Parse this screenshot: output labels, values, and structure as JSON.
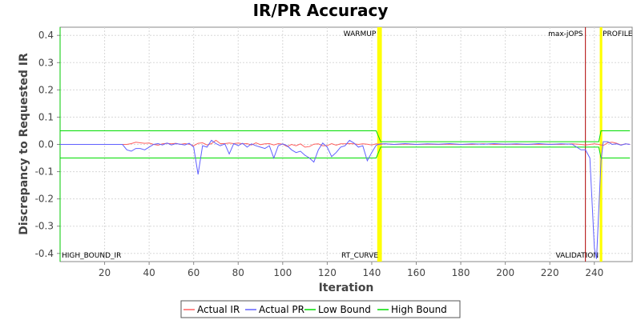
{
  "chart_data": {
    "type": "line",
    "title": "IR/PR Accuracy",
    "xlabel": "Iteration",
    "ylabel": "Discrepancy to Requested IR",
    "xlim": [
      0,
      257
    ],
    "ylim": [
      -0.43,
      0.43
    ],
    "xticks": [
      20,
      40,
      60,
      80,
      100,
      120,
      140,
      160,
      180,
      200,
      220,
      240
    ],
    "yticks": [
      0.4,
      0.3,
      0.2,
      0.1,
      0.0,
      -0.1,
      -0.2,
      -0.3,
      -0.4
    ],
    "ytick_labels": [
      "0.4",
      "0.3",
      "0.2",
      "0.1",
      "0.0",
      "-0.1",
      "-0.2",
      "-0.3",
      "-0.4"
    ],
    "grid": true,
    "legend_position": "bottom",
    "markers": [
      {
        "label": "HIGH_BOUND_IR",
        "x": 0,
        "color": "#00c800",
        "label_pos": "bottom-right"
      },
      {
        "label": "WARMUP",
        "x": 143,
        "color": "#ffff00",
        "label_pos": "top-left"
      },
      {
        "label": "RT_CURVE",
        "x": 144,
        "color": "#ffff00",
        "label_pos": "bottom-left"
      },
      {
        "label": "max-jOPS",
        "x": 236,
        "color": "#b00000",
        "label_pos": "top-left"
      },
      {
        "label": "VALIDATION",
        "x": 243,
        "color": "#ffff00",
        "label_pos": "bottom-left"
      },
      {
        "label": "PROFILE",
        "x": 243,
        "color": "#ffff00",
        "label_pos": "top-right"
      }
    ],
    "series": [
      {
        "name": "Actual IR",
        "color": "#ff6060",
        "x": [
          0,
          28,
          30,
          32,
          34,
          36,
          38,
          40,
          42,
          44,
          46,
          48,
          50,
          52,
          54,
          56,
          58,
          60,
          62,
          64,
          66,
          68,
          70,
          72,
          74,
          76,
          78,
          80,
          82,
          84,
          86,
          88,
          90,
          92,
          94,
          96,
          98,
          100,
          102,
          104,
          106,
          108,
          110,
          112,
          114,
          116,
          118,
          120,
          122,
          124,
          126,
          128,
          130,
          132,
          134,
          136,
          138,
          140,
          142,
          144,
          146,
          150,
          155,
          160,
          165,
          170,
          175,
          180,
          185,
          190,
          195,
          200,
          205,
          210,
          215,
          220,
          225,
          230,
          234,
          236,
          238,
          240,
          242,
          244,
          246,
          248,
          250,
          252,
          254,
          256
        ],
        "y": [
          0,
          0,
          0,
          0.003,
          0.008,
          0.006,
          0.004,
          0.005,
          0,
          -0.003,
          0.002,
          0.004,
          0.002,
          0.004,
          0,
          0.003,
          0.001,
          -0.005,
          0.004,
          0.006,
          -0.002,
          0.003,
          0.015,
          0.003,
          0.003,
          0.005,
          0.003,
          0.005,
          0.002,
          0.003,
          -0.002,
          0.006,
          -0.001,
          0.002,
          0.003,
          -0.002,
          0.003,
          0.001,
          -0.008,
          0,
          -0.005,
          0.002,
          -0.01,
          -0.008,
          0.001,
          0.002,
          -0.005,
          -0.004,
          0.003,
          -0.003,
          0.002,
          0.002,
          0.003,
          0.002,
          0,
          0.002,
          0.001,
          -0.002,
          0.002,
          0,
          0.002,
          0,
          0.001,
          0,
          0.001,
          0,
          0.001,
          0,
          0,
          0.002,
          0,
          0.001,
          0,
          0.001,
          0,
          0.001,
          0,
          0.002,
          0,
          -0.002,
          0,
          0.002,
          0,
          -0.004,
          0.006,
          0.008,
          0.004,
          -0.002,
          0.002,
          0
        ]
      },
      {
        "name": "Actual PR",
        "color": "#6060ff",
        "x": [
          0,
          28,
          30,
          32,
          34,
          36,
          38,
          40,
          42,
          44,
          46,
          48,
          50,
          52,
          54,
          56,
          58,
          60,
          62,
          64,
          66,
          68,
          70,
          72,
          74,
          76,
          78,
          80,
          82,
          84,
          86,
          88,
          90,
          92,
          94,
          96,
          98,
          100,
          102,
          104,
          106,
          108,
          110,
          112,
          114,
          116,
          118,
          120,
          122,
          124,
          126,
          128,
          130,
          132,
          134,
          136,
          138,
          140,
          142,
          144,
          146,
          150,
          155,
          160,
          165,
          170,
          175,
          180,
          185,
          190,
          195,
          200,
          205,
          210,
          215,
          220,
          225,
          230,
          234,
          236,
          238,
          240,
          241,
          242,
          243,
          244,
          246,
          248,
          250,
          252,
          254,
          256
        ],
        "y": [
          0,
          0,
          -0.02,
          -0.025,
          -0.015,
          -0.015,
          -0.02,
          -0.01,
          0,
          0.003,
          -0.002,
          0.005,
          -0.002,
          0.003,
          0.001,
          -0.002,
          0.004,
          -0.01,
          -0.11,
          -0.005,
          -0.01,
          0.015,
          0.003,
          -0.005,
          0.002,
          -0.035,
          0.003,
          -0.004,
          0.004,
          -0.01,
          0.002,
          -0.005,
          -0.01,
          -0.015,
          -0.005,
          -0.05,
          -0.005,
          0.002,
          -0.005,
          -0.02,
          -0.03,
          -0.025,
          -0.04,
          -0.05,
          -0.065,
          -0.02,
          0.005,
          -0.01,
          -0.045,
          -0.03,
          -0.01,
          -0.005,
          0.015,
          0.005,
          -0.01,
          -0.005,
          -0.06,
          -0.03,
          -0.003,
          0.002,
          0.002,
          0,
          0.003,
          0,
          0.002,
          0.001,
          0.003,
          0,
          0.002,
          0.001,
          0.003,
          0.001,
          0.002,
          0,
          0.003,
          0,
          0.002,
          0.001,
          -0.02,
          -0.02,
          -0.05,
          -0.38,
          -0.42,
          -0.24,
          -0.06,
          0.01,
          0.01,
          0,
          0.002,
          -0.003,
          0.002,
          0
        ]
      },
      {
        "name": "Low Bound",
        "color": "#00dd00",
        "x": [
          0,
          142,
          144,
          236,
          242,
          243,
          256
        ],
        "y": [
          -0.05,
          -0.05,
          -0.01,
          -0.01,
          -0.01,
          -0.05,
          -0.05
        ]
      },
      {
        "name": "High Bound",
        "color": "#00dd00",
        "x": [
          0,
          142,
          144,
          236,
          242,
          243,
          256
        ],
        "y": [
          0.05,
          0.05,
          0.01,
          0.01,
          0.01,
          0.05,
          0.05
        ]
      }
    ]
  }
}
